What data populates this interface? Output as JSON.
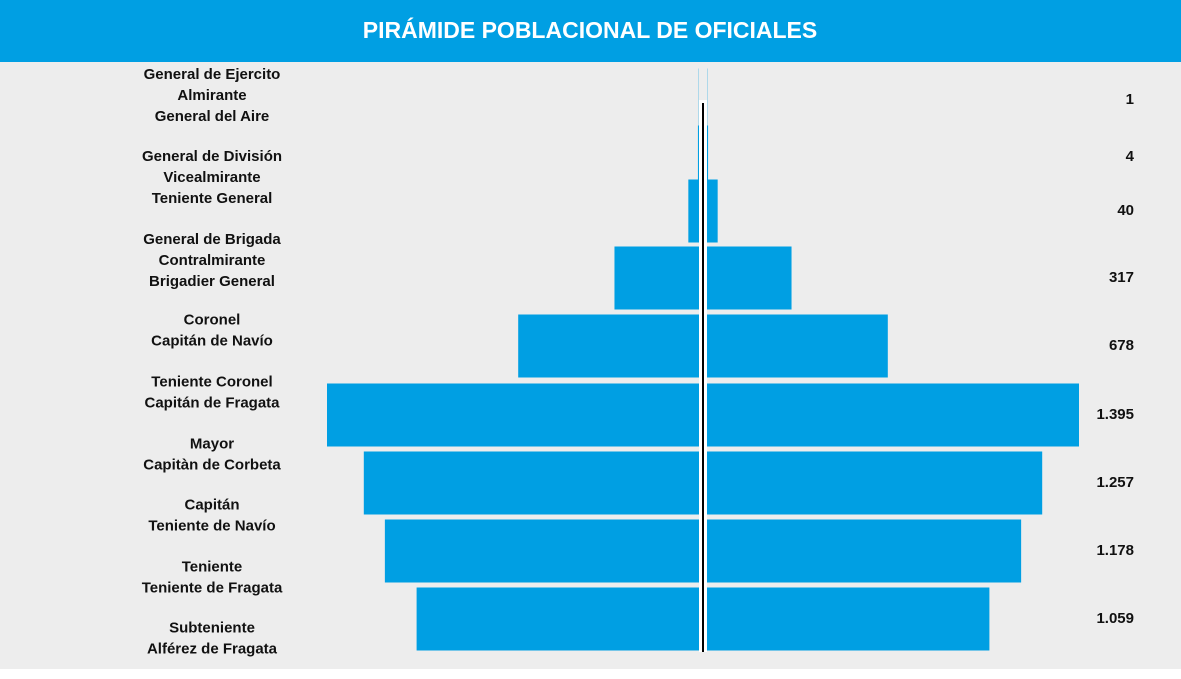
{
  "chart_data": {
    "type": "pyramid",
    "title": "PIRÁMIDE POBLACIONAL DE OFICIALES",
    "categories": [
      [
        "General de Ejercito",
        "Almirante",
        "General del Aire"
      ],
      [
        "General de División",
        "Vicealmirante",
        "Teniente General"
      ],
      [
        "General de Brigada",
        "Contralmirante",
        "Brigadier General"
      ],
      [
        "Coronel",
        "Capitán de Navío"
      ],
      [
        "Teniente Coronel",
        "Capitán de Fragata"
      ],
      [
        "Mayor",
        "Capitàn de Corbeta"
      ],
      [
        "Capitán",
        "Teniente de Navío"
      ],
      [
        "Teniente",
        "Teniente de Fragata"
      ],
      [
        "Subteniente",
        "Alférez de Fragata"
      ]
    ],
    "values": [
      1,
      4,
      40,
      317,
      678,
      1395,
      1257,
      1178,
      1059
    ],
    "value_labels": [
      "1",
      "4",
      "40",
      "317",
      "678",
      "1.395",
      "1.257",
      "1.178",
      "1.059"
    ],
    "color": "#009fe3",
    "xlim": [
      0,
      1395
    ]
  }
}
